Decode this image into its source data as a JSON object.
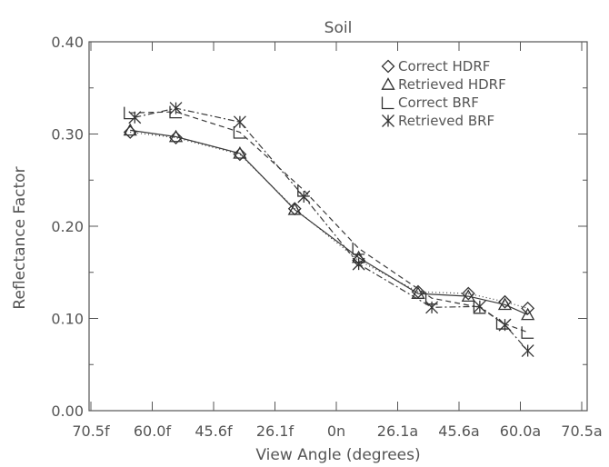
{
  "chart_data": {
    "type": "line",
    "title": "Soil",
    "xlabel": "View Angle (degrees)",
    "ylabel": "Reflectance Factor",
    "ylim": [
      0.0,
      0.4
    ],
    "yticks": [
      "0.00",
      "0.10",
      "0.20",
      "0.30",
      "0.40"
    ],
    "xticks": [
      "70.5f",
      "60.0f",
      "45.6f",
      "26.1f",
      "0n",
      "26.1a",
      "45.6a",
      "60.0a",
      "70.5a"
    ],
    "grid": false,
    "legend_position": "top-right",
    "series": [
      {
        "name": "Correct HDRF",
        "marker": "diamond",
        "dash": "1,3",
        "points": [
          [
            -1.0,
            0.302
          ],
          [
            -0.8,
            0.296
          ],
          [
            -0.52,
            0.278
          ],
          [
            -0.28,
            0.219
          ],
          [
            0.0,
            0.163
          ],
          [
            0.26,
            0.129
          ],
          [
            0.48,
            0.127
          ],
          [
            0.64,
            0.118
          ],
          [
            0.74,
            0.111
          ]
        ]
      },
      {
        "name": "Retrieved HDRF",
        "marker": "triangle",
        "dash": "",
        "points": [
          [
            -1.0,
            0.304
          ],
          [
            -0.8,
            0.297
          ],
          [
            -0.52,
            0.279
          ],
          [
            -0.28,
            0.218
          ],
          [
            0.0,
            0.166
          ],
          [
            0.26,
            0.127
          ],
          [
            0.48,
            0.124
          ],
          [
            0.64,
            0.115
          ],
          [
            0.74,
            0.104
          ]
        ]
      },
      {
        "name": "Correct BRF",
        "marker": "square",
        "dash": "6,4",
        "points": [
          [
            -1.0,
            0.323
          ],
          [
            -0.8,
            0.324
          ],
          [
            -0.52,
            0.302
          ],
          [
            -0.24,
            0.239
          ],
          [
            0.0,
            0.176
          ],
          [
            0.32,
            0.122
          ],
          [
            0.53,
            0.112
          ],
          [
            0.63,
            0.095
          ],
          [
            0.74,
            0.085
          ]
        ]
      },
      {
        "name": "Retrieved BRF",
        "marker": "asterisk",
        "dash": "7,3,2,3",
        "points": [
          [
            -0.98,
            0.318
          ],
          [
            -0.8,
            0.328
          ],
          [
            -0.52,
            0.313
          ],
          [
            -0.24,
            0.232
          ],
          [
            0.0,
            0.159
          ],
          [
            0.32,
            0.112
          ],
          [
            0.53,
            0.113
          ],
          [
            0.64,
            0.093
          ],
          [
            0.74,
            0.065
          ]
        ]
      }
    ]
  }
}
